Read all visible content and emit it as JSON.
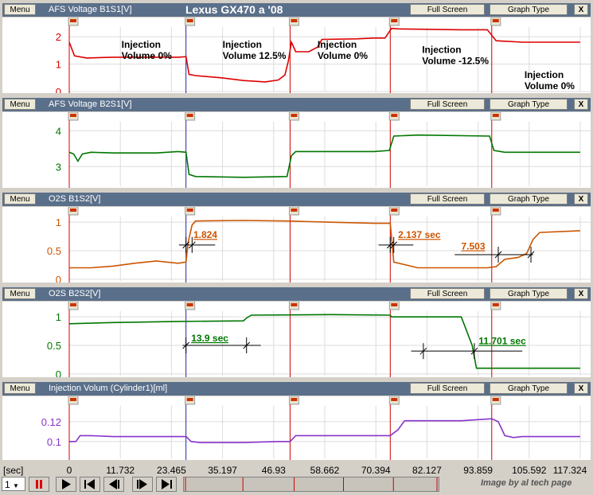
{
  "main_title": "Lexus GX470 a '08",
  "buttons": {
    "menu": "Menu",
    "full_screen": "Full Screen",
    "graph_type": "Graph Type",
    "close": "X"
  },
  "x_axis": {
    "unit": "[sec]",
    "ticks": [
      "0",
      "11.732",
      "23.465",
      "35.197",
      "46.93",
      "58.662",
      "70.394",
      "82.127",
      "93.859",
      "105.592",
      "117.324"
    ],
    "range": [
      0,
      117.324
    ]
  },
  "markers_time": [
    0,
    26.8,
    50.7,
    73.7,
    97.0
  ],
  "panels": [
    {
      "title": "AFS Voltage B1S1[V]",
      "color": "#dd0000",
      "chart_data": {
        "type": "line",
        "ylim": [
          0,
          2.35
        ],
        "yticks": [
          "2",
          "1",
          "0"
        ],
        "ytick_values": [
          2,
          1,
          0
        ],
        "x": [
          0,
          1.2,
          4,
          10,
          20,
          25,
          26.8,
          27.5,
          29,
          35,
          40,
          45,
          48,
          49.5,
          50.3,
          51,
          52,
          55,
          57,
          58,
          66,
          70,
          72.5,
          74,
          76,
          90,
          96,
          98,
          104,
          117.3
        ],
        "values": [
          1.8,
          1.3,
          1.22,
          1.25,
          1.25,
          1.25,
          1.27,
          0.62,
          0.58,
          0.5,
          0.4,
          0.35,
          0.42,
          0.6,
          1.1,
          1.8,
          1.45,
          1.45,
          1.62,
          1.9,
          1.92,
          1.95,
          1.95,
          2.3,
          2.28,
          2.25,
          2.25,
          1.85,
          1.8,
          1.8
        ],
        "annotations": [
          {
            "text": "Injection\nVolume  0%",
            "x": 12,
            "y": 1.6
          },
          {
            "text": "Injection\nVolume 12.5%",
            "x": 35.2,
            "y": 1.6
          },
          {
            "text": "Injection\nVolume  0%",
            "x": 57,
            "y": 1.6
          },
          {
            "text": "Injection\nVolume -12.5%",
            "x": 81,
            "y": 1.4
          },
          {
            "text": "Injection\nVolume  0%",
            "x": 104.5,
            "y": 0.5
          }
        ]
      }
    },
    {
      "title": "AFS Voltage B2S1[V]",
      "color": "#007700",
      "chart_data": {
        "type": "line",
        "ylim": [
          2.45,
          4.25
        ],
        "yticks": [
          "4",
          "3"
        ],
        "ytick_values": [
          4,
          3
        ],
        "x": [
          0,
          1,
          2,
          3,
          5,
          10,
          20,
          25,
          26.8,
          27.5,
          29,
          40,
          50,
          51,
          52,
          60,
          70,
          73.5,
          74.5,
          80,
          96.5,
          97.5,
          100,
          117.3
        ],
        "values": [
          3.4,
          3.35,
          3.15,
          3.35,
          3.4,
          3.38,
          3.38,
          3.42,
          3.4,
          2.78,
          2.72,
          2.7,
          2.72,
          3.3,
          3.42,
          3.42,
          3.42,
          3.45,
          3.85,
          3.88,
          3.85,
          3.45,
          3.4,
          3.4
        ]
      }
    },
    {
      "title": "O2S B1S2[V]",
      "color": "#cc5500",
      "chart_data": {
        "type": "line",
        "ylim": [
          -0.03,
          1.1
        ],
        "yticks": [
          "1",
          "0.5",
          "0"
        ],
        "ytick_values": [
          1,
          0.5,
          0
        ],
        "x": [
          0,
          5,
          10,
          15,
          20,
          25,
          26.8,
          27.3,
          28.2,
          29,
          40,
          50,
          60,
          70,
          73.7,
          74.5,
          80,
          90,
          96,
          98,
          100,
          103,
          105,
          106.5,
          108,
          117.3
        ],
        "values": [
          0.2,
          0.2,
          0.23,
          0.28,
          0.32,
          0.28,
          0.3,
          0.65,
          0.95,
          1.02,
          1.03,
          1.02,
          1.0,
          0.98,
          0.98,
          0.3,
          0.2,
          0.2,
          0.2,
          0.22,
          0.35,
          0.38,
          0.45,
          0.7,
          0.82,
          0.85
        ],
        "annotations": [
          {
            "text": "1.824",
            "x": 28.5,
            "y": 0.72,
            "line": [
              25.2,
              33.5,
              0.6
            ],
            "marks": [
              26.8,
              28.2
            ]
          },
          {
            "text": "2.137 sec",
            "x": 75.5,
            "y": 0.72,
            "line": [
              71,
              79,
              0.6
            ],
            "marks": [
              73.7,
              74.5
            ]
          },
          {
            "text": "7.503",
            "x": 90,
            "y": 0.52,
            "line": [
              88.5,
              106.5,
              0.43
            ],
            "marks": [
              98.5,
              106
            ]
          }
        ]
      }
    },
    {
      "title": "O2S B2S2[V]",
      "color": "#007700",
      "chart_data": {
        "type": "line",
        "ylim": [
          -0.03,
          1.1
        ],
        "yticks": [
          "1",
          "0.5",
          "0"
        ],
        "ytick_values": [
          1,
          0.5,
          0
        ],
        "x": [
          0,
          10,
          25,
          40,
          40.7,
          41.8,
          60,
          73.7,
          74,
          90,
          92.5,
          93.5,
          110,
          117.3
        ],
        "values": [
          0.88,
          0.9,
          0.92,
          0.93,
          0.98,
          1.03,
          1.04,
          1.03,
          1.0,
          1.0,
          0.5,
          0.1,
          0.1,
          0.1
        ],
        "annotations": [
          {
            "text": "13.9 sec",
            "x": 28,
            "y": 0.57,
            "line": [
              26,
              44,
              0.5
            ],
            "marks": [
              26.8,
              40.7
            ]
          },
          {
            "text": "11.701 sec",
            "x": 94,
            "y": 0.52,
            "line": [
              78.5,
              104,
              0.4
            ],
            "marks": [
              81.3,
              93
            ]
          }
        ]
      }
    },
    {
      "title": "Injection Volum (Cylinder1)[ml]",
      "color": "#8833cc",
      "chart_data": {
        "type": "line",
        "ylim": [
          0.083,
          0.136
        ],
        "yticks": [
          "0.12",
          "0.1"
        ],
        "ytick_values": [
          0.12,
          0.1
        ],
        "x": [
          0,
          1.5,
          2.5,
          5,
          10,
          20,
          26.8,
          28,
          30,
          40,
          48,
          50.7,
          52,
          60,
          70,
          73.7,
          75.5,
          77,
          80,
          90,
          97,
          98.5,
          100,
          102,
          104,
          117.3
        ],
        "values": [
          0.1,
          0.1,
          0.106,
          0.106,
          0.105,
          0.105,
          0.105,
          0.1,
          0.099,
          0.099,
          0.1,
          0.1,
          0.106,
          0.106,
          0.106,
          0.106,
          0.112,
          0.121,
          0.121,
          0.121,
          0.123,
          0.12,
          0.106,
          0.104,
          0.105,
          0.105
        ]
      }
    }
  ]
}
